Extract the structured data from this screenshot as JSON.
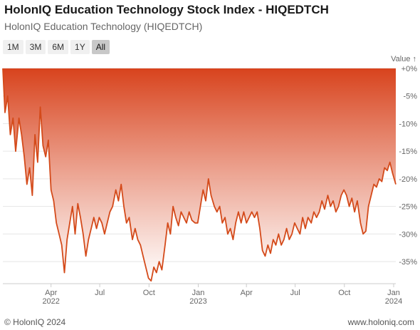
{
  "header": {
    "title": "HolonIQ Education Technology Stock Index - HIQEDTCH",
    "subtitle": "HolonIQ Education Technology (HIQEDTCH)"
  },
  "range_selector": {
    "buttons": [
      "1M",
      "3M",
      "6M",
      "1Y",
      "All"
    ],
    "active": "All"
  },
  "footer": {
    "copyright": "© HolonIQ 2024",
    "website": "www.holoniq.com"
  },
  "colors": {
    "line": "#d44a1a",
    "fill_top": "#d8431d",
    "fill_bottom": "#ffffff"
  },
  "chart_data": {
    "type": "area",
    "ylabel": "Value ↑",
    "ylim": [
      -39,
      0
    ],
    "yticks": [
      0,
      -5,
      -10,
      -15,
      -20,
      -25,
      -30,
      -35
    ],
    "ytick_labels": [
      "+0%",
      "-5%",
      "-10%",
      "-15%",
      "-20%",
      "-25%",
      "-30%",
      "-35%"
    ],
    "xlim": [
      "2022-01-01",
      "2024-01-05"
    ],
    "xticks": [
      {
        "date": "2022-04-01",
        "label": "Apr",
        "sublabel": "2022"
      },
      {
        "date": "2022-07-01",
        "label": "Jul",
        "sublabel": ""
      },
      {
        "date": "2022-10-01",
        "label": "Oct",
        "sublabel": ""
      },
      {
        "date": "2023-01-01",
        "label": "Jan",
        "sublabel": "2023"
      },
      {
        "date": "2023-04-01",
        "label": "Apr",
        "sublabel": ""
      },
      {
        "date": "2023-07-01",
        "label": "Jul",
        "sublabel": ""
      },
      {
        "date": "2023-10-01",
        "label": "Oct",
        "sublabel": ""
      },
      {
        "date": "2024-01-01",
        "label": "Jan",
        "sublabel": "2024"
      }
    ],
    "grid": true,
    "legend": "none",
    "series": [
      {
        "points": [
          [
            "2022-01-01",
            0.0
          ],
          [
            "2022-01-05",
            -8.0
          ],
          [
            "2022-01-10",
            -5.0
          ],
          [
            "2022-01-15",
            -12.0
          ],
          [
            "2022-01-20",
            -9.0
          ],
          [
            "2022-01-25",
            -15.0
          ],
          [
            "2022-01-31",
            -9.0
          ],
          [
            "2022-02-05",
            -12.0
          ],
          [
            "2022-02-10",
            -16.0
          ],
          [
            "2022-02-15",
            -21.0
          ],
          [
            "2022-02-20",
            -18.0
          ],
          [
            "2022-02-25",
            -23.0
          ],
          [
            "2022-03-02",
            -12.0
          ],
          [
            "2022-03-07",
            -17.0
          ],
          [
            "2022-03-12",
            -7.0
          ],
          [
            "2022-03-17",
            -14.0
          ],
          [
            "2022-03-22",
            -16.0
          ],
          [
            "2022-03-27",
            -13.0
          ],
          [
            "2022-04-01",
            -22.0
          ],
          [
            "2022-04-06",
            -24.0
          ],
          [
            "2022-04-11",
            -28.0
          ],
          [
            "2022-04-16",
            -30.0
          ],
          [
            "2022-04-21",
            -32.0
          ],
          [
            "2022-04-26",
            -37.0
          ],
          [
            "2022-05-01",
            -31.0
          ],
          [
            "2022-05-06",
            -28.0
          ],
          [
            "2022-05-11",
            -25.0
          ],
          [
            "2022-05-16",
            -30.0
          ],
          [
            "2022-05-21",
            -24.5
          ],
          [
            "2022-05-26",
            -27.0
          ],
          [
            "2022-05-31",
            -30.0
          ],
          [
            "2022-06-05",
            -34.0
          ],
          [
            "2022-06-10",
            -31.0
          ],
          [
            "2022-06-15",
            -29.0
          ],
          [
            "2022-06-20",
            -27.0
          ],
          [
            "2022-06-25",
            -29.0
          ],
          [
            "2022-06-30",
            -27.0
          ],
          [
            "2022-07-05",
            -28.0
          ],
          [
            "2022-07-10",
            -30.0
          ],
          [
            "2022-07-15",
            -28.0
          ],
          [
            "2022-07-20",
            -26.0
          ],
          [
            "2022-07-25",
            -25.0
          ],
          [
            "2022-07-31",
            -22.0
          ],
          [
            "2022-08-05",
            -24.0
          ],
          [
            "2022-08-10",
            -21.0
          ],
          [
            "2022-08-15",
            -25.0
          ],
          [
            "2022-08-20",
            -28.0
          ],
          [
            "2022-08-25",
            -27.0
          ],
          [
            "2022-08-31",
            -31.0
          ],
          [
            "2022-09-05",
            -29.0
          ],
          [
            "2022-09-10",
            -31.0
          ],
          [
            "2022-09-15",
            -32.0
          ],
          [
            "2022-09-20",
            -34.0
          ],
          [
            "2022-09-25",
            -36.0
          ],
          [
            "2022-09-30",
            -38.0
          ],
          [
            "2022-10-05",
            -38.5
          ],
          [
            "2022-10-10",
            -36.0
          ],
          [
            "2022-10-15",
            -37.0
          ],
          [
            "2022-10-20",
            -35.0
          ],
          [
            "2022-10-25",
            -36.5
          ],
          [
            "2022-10-31",
            -32.0
          ],
          [
            "2022-11-05",
            -28.0
          ],
          [
            "2022-11-10",
            -30.0
          ],
          [
            "2022-11-15",
            -25.0
          ],
          [
            "2022-11-20",
            -27.0
          ],
          [
            "2022-11-25",
            -28.5
          ],
          [
            "2022-11-30",
            -26.0
          ],
          [
            "2022-12-05",
            -27.0
          ],
          [
            "2022-12-10",
            -28.0
          ],
          [
            "2022-12-15",
            -26.0
          ],
          [
            "2022-12-20",
            -27.5
          ],
          [
            "2022-12-26",
            -28.0
          ],
          [
            "2022-12-31",
            -28.0
          ],
          [
            "2023-01-05",
            -25.0
          ],
          [
            "2023-01-10",
            -22.0
          ],
          [
            "2023-01-15",
            -24.0
          ],
          [
            "2023-01-20",
            -20.0
          ],
          [
            "2023-01-25",
            -23.0
          ],
          [
            "2023-01-31",
            -25.0
          ],
          [
            "2023-02-05",
            -26.0
          ],
          [
            "2023-02-10",
            -25.0
          ],
          [
            "2023-02-15",
            -28.0
          ],
          [
            "2023-02-20",
            -27.0
          ],
          [
            "2023-02-25",
            -30.0
          ],
          [
            "2023-03-02",
            -29.0
          ],
          [
            "2023-03-07",
            -31.0
          ],
          [
            "2023-03-12",
            -28.0
          ],
          [
            "2023-03-17",
            -26.0
          ],
          [
            "2023-03-22",
            -28.0
          ],
          [
            "2023-03-27",
            -26.0
          ],
          [
            "2023-04-01",
            -28.0
          ],
          [
            "2023-04-06",
            -27.0
          ],
          [
            "2023-04-11",
            -26.0
          ],
          [
            "2023-04-16",
            -27.0
          ],
          [
            "2023-04-21",
            -26.0
          ],
          [
            "2023-04-26",
            -29.0
          ],
          [
            "2023-05-01",
            -33.0
          ],
          [
            "2023-05-06",
            -34.0
          ],
          [
            "2023-05-11",
            -32.0
          ],
          [
            "2023-05-16",
            -33.5
          ],
          [
            "2023-05-21",
            -31.0
          ],
          [
            "2023-05-26",
            -32.0
          ],
          [
            "2023-05-31",
            -30.0
          ],
          [
            "2023-06-05",
            -32.0
          ],
          [
            "2023-06-10",
            -31.0
          ],
          [
            "2023-06-15",
            -29.0
          ],
          [
            "2023-06-20",
            -31.0
          ],
          [
            "2023-06-25",
            -30.0
          ],
          [
            "2023-06-30",
            -28.0
          ],
          [
            "2023-07-05",
            -29.0
          ],
          [
            "2023-07-10",
            -30.0
          ],
          [
            "2023-07-15",
            -27.0
          ],
          [
            "2023-07-20",
            -29.0
          ],
          [
            "2023-07-25",
            -27.0
          ],
          [
            "2023-07-31",
            -28.0
          ],
          [
            "2023-08-05",
            -26.0
          ],
          [
            "2023-08-10",
            -27.0
          ],
          [
            "2023-08-15",
            -26.0
          ],
          [
            "2023-08-20",
            -24.0
          ],
          [
            "2023-08-25",
            -25.5
          ],
          [
            "2023-08-31",
            -23.0
          ],
          [
            "2023-09-05",
            -25.0
          ],
          [
            "2023-09-10",
            -24.0
          ],
          [
            "2023-09-15",
            -26.0
          ],
          [
            "2023-09-20",
            -25.0
          ],
          [
            "2023-09-25",
            -23.0
          ],
          [
            "2023-09-30",
            -22.0
          ],
          [
            "2023-10-05",
            -23.0
          ],
          [
            "2023-10-10",
            -25.0
          ],
          [
            "2023-10-15",
            -23.5
          ],
          [
            "2023-10-20",
            -26.0
          ],
          [
            "2023-10-25",
            -24.0
          ],
          [
            "2023-10-31",
            -28.0
          ],
          [
            "2023-11-05",
            -30.0
          ],
          [
            "2023-11-10",
            -29.5
          ],
          [
            "2023-11-15",
            -25.0
          ],
          [
            "2023-11-20",
            -23.0
          ],
          [
            "2023-11-25",
            -21.0
          ],
          [
            "2023-11-30",
            -21.5
          ],
          [
            "2023-12-05",
            -20.0
          ],
          [
            "2023-12-10",
            -20.5
          ],
          [
            "2023-12-15",
            -18.0
          ],
          [
            "2023-12-20",
            -18.5
          ],
          [
            "2023-12-25",
            -17.0
          ],
          [
            "2023-12-30",
            -19.0
          ],
          [
            "2024-01-05",
            -21.0
          ]
        ]
      }
    ]
  }
}
